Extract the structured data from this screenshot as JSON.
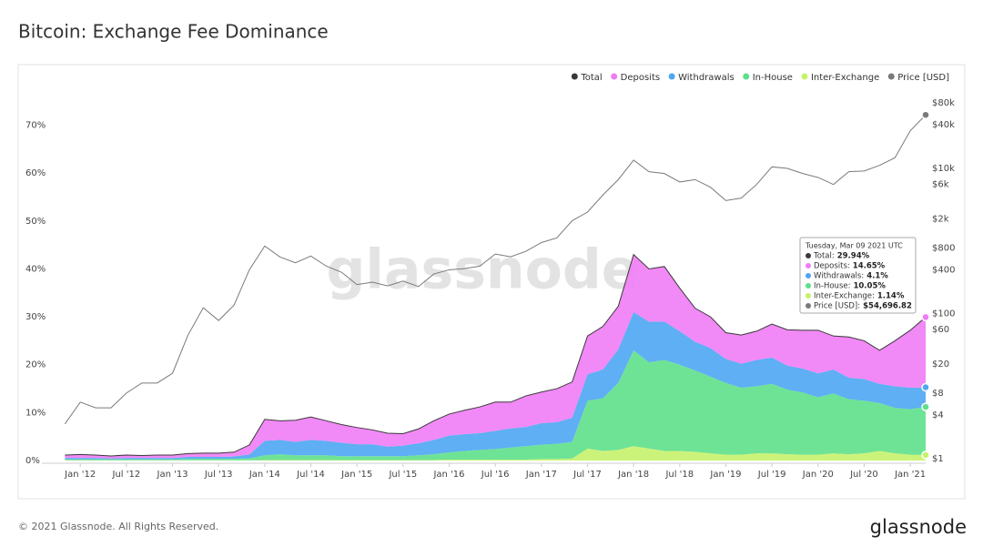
{
  "title": "Bitcoin: Exchange Fee Dominance",
  "footer": "© 2021 Glassnode. All Rights Reserved.",
  "logo": "glassnode",
  "chart_data": {
    "type": "stacked-area",
    "watermark": "glassnode",
    "x": [
      "2011-11",
      "2012-01",
      "2012-03",
      "2012-05",
      "2012-07",
      "2012-09",
      "2012-11",
      "2013-01",
      "2013-03",
      "2013-05",
      "2013-07",
      "2013-09",
      "2013-11",
      "2014-01",
      "2014-03",
      "2014-05",
      "2014-07",
      "2014-09",
      "2014-11",
      "2015-01",
      "2015-03",
      "2015-05",
      "2015-07",
      "2015-09",
      "2015-11",
      "2016-01",
      "2016-03",
      "2016-05",
      "2016-07",
      "2016-09",
      "2016-11",
      "2017-01",
      "2017-03",
      "2017-05",
      "2017-07",
      "2017-09",
      "2017-11",
      "2018-01",
      "2018-03",
      "2018-05",
      "2018-07",
      "2018-09",
      "2018-11",
      "2019-01",
      "2019-03",
      "2019-05",
      "2019-07",
      "2019-09",
      "2019-11",
      "2020-01",
      "2020-03",
      "2020-05",
      "2020-07",
      "2020-09",
      "2020-11",
      "2021-01",
      "2021-03"
    ],
    "xlim": [
      "2011-08",
      "2021-03"
    ],
    "xticks": [
      {
        "value": "2012-01",
        "label": "Jan '12"
      },
      {
        "value": "2012-07",
        "label": "Jul '12"
      },
      {
        "value": "2013-01",
        "label": "Jan '13"
      },
      {
        "value": "2013-07",
        "label": "Jul '13"
      },
      {
        "value": "2014-01",
        "label": "Jan '14"
      },
      {
        "value": "2014-07",
        "label": "Jul '14"
      },
      {
        "value": "2015-01",
        "label": "Jan '15"
      },
      {
        "value": "2015-07",
        "label": "Jul '15"
      },
      {
        "value": "2016-01",
        "label": "Jan '16"
      },
      {
        "value": "2016-07",
        "label": "Jul '16"
      },
      {
        "value": "2017-01",
        "label": "Jan '17"
      },
      {
        "value": "2017-07",
        "label": "Jul '17"
      },
      {
        "value": "2018-01",
        "label": "Jan '18"
      },
      {
        "value": "2018-07",
        "label": "Jul '18"
      },
      {
        "value": "2019-01",
        "label": "Jan '19"
      },
      {
        "value": "2019-07",
        "label": "Jul '19"
      },
      {
        "value": "2020-01",
        "label": "Jan '20"
      },
      {
        "value": "2020-07",
        "label": "Jul '20"
      },
      {
        "value": "2021-01",
        "label": "Jan '21"
      }
    ],
    "ylim": [
      0,
      76
    ],
    "yticks": [
      {
        "value": 0,
        "label": "0%"
      },
      {
        "value": 10,
        "label": "10%"
      },
      {
        "value": 20,
        "label": "20%"
      },
      {
        "value": 30,
        "label": "30%"
      },
      {
        "value": 40,
        "label": "40%"
      },
      {
        "value": 50,
        "label": "50%"
      },
      {
        "value": 60,
        "label": "60%"
      },
      {
        "value": 70,
        "label": "70%"
      }
    ],
    "y2lim": [
      0.94,
      98000
    ],
    "y2log": true,
    "y2ticks": [
      {
        "value": 1,
        "label": "$1"
      },
      {
        "value": 4,
        "label": "$4"
      },
      {
        "value": 8,
        "label": "$8"
      },
      {
        "value": 20,
        "label": "$20"
      },
      {
        "value": 60,
        "label": "$60"
      },
      {
        "value": 100,
        "label": "$100"
      },
      {
        "value": 400,
        "label": "$400"
      },
      {
        "value": 800,
        "label": "$800"
      },
      {
        "value": 2000,
        "label": "$2k"
      },
      {
        "value": 6000,
        "label": "$6k"
      },
      {
        "value": 10000,
        "label": "$10k"
      },
      {
        "value": 40000,
        "label": "$40k"
      },
      {
        "value": 80000,
        "label": "$80k"
      }
    ],
    "grid": false,
    "legend": "top-right",
    "series": [
      {
        "name": "Total",
        "color": "#3a3a3a",
        "values": [
          1.15,
          1.25,
          1.15,
          0.95,
          1.15,
          1.05,
          1.15,
          1.15,
          1.45,
          1.55,
          1.55,
          1.75,
          3.25,
          8.6,
          8.3,
          8.4,
          9.1,
          8.3,
          7.5,
          6.9,
          6.4,
          5.7,
          5.6,
          6.6,
          8.3,
          9.7,
          10.5,
          11.2,
          12.2,
          12.2,
          13.5,
          14.3,
          15,
          16.4,
          26,
          28,
          32.2,
          43,
          40,
          40.5,
          36,
          31.8,
          30,
          26.7,
          26.2,
          27,
          28.5,
          27.3,
          27.2,
          27.2,
          26,
          25.8,
          25,
          23,
          25,
          27.2,
          29.94
        ]
      },
      {
        "name": "Deposits",
        "color": "#f07cf5",
        "stacked": true,
        "values": [
          0.6,
          0.7,
          0.6,
          0.5,
          0.6,
          0.5,
          0.6,
          0.6,
          0.7,
          0.8,
          0.8,
          0.9,
          2.0,
          4.5,
          4.0,
          4.5,
          4.8,
          4.2,
          3.8,
          3.5,
          3.0,
          2.8,
          2.5,
          3.0,
          4.0,
          4.5,
          5.0,
          5.5,
          6.0,
          5.5,
          6.5,
          6.5,
          7.0,
          7.5,
          8.0,
          9.0,
          9.0,
          12.0,
          11.0,
          11.5,
          9.0,
          7.0,
          6.5,
          5.5,
          6.0,
          6.0,
          7.0,
          7.5,
          8.0,
          9.0,
          7.0,
          8.5,
          8.0,
          7.0,
          9.5,
          12.0,
          14.65
        ]
      },
      {
        "name": "Withdrawals",
        "color": "#4da6f2",
        "stacked": true,
        "values": [
          0.3,
          0.3,
          0.3,
          0.2,
          0.3,
          0.3,
          0.3,
          0.3,
          0.4,
          0.4,
          0.4,
          0.5,
          0.8,
          3.0,
          3.0,
          2.8,
          3.2,
          3.0,
          2.8,
          2.5,
          2.5,
          2.0,
          2.2,
          2.5,
          3.0,
          3.5,
          3.5,
          3.5,
          3.8,
          4.0,
          4.0,
          4.5,
          4.5,
          5.0,
          5.5,
          6.0,
          7.0,
          8.0,
          8.5,
          8.0,
          7.0,
          6.0,
          6.0,
          5.0,
          5.0,
          5.5,
          5.5,
          5.0,
          5.0,
          5.0,
          5.0,
          4.5,
          4.5,
          4.0,
          4.5,
          4.5,
          4.1
        ]
      },
      {
        "name": "In-House",
        "color": "#5ee08a",
        "stacked": true,
        "values": [
          0.2,
          0.2,
          0.2,
          0.2,
          0.2,
          0.2,
          0.2,
          0.2,
          0.3,
          0.3,
          0.3,
          0.3,
          0.4,
          1.0,
          1.2,
          1.0,
          1.0,
          1.0,
          0.8,
          0.8,
          0.8,
          0.8,
          0.8,
          1.0,
          1.2,
          1.5,
          1.8,
          2.0,
          2.2,
          2.5,
          2.8,
          3.0,
          3.2,
          3.5,
          10.0,
          11.0,
          14.0,
          20.0,
          18.0,
          19.0,
          18.0,
          17.0,
          16.0,
          15.0,
          14.0,
          14.0,
          14.5,
          13.5,
          13.0,
          12.0,
          12.5,
          11.5,
          11.0,
          10.0,
          9.5,
          9.5,
          10.05
        ]
      },
      {
        "name": "Inter-Exchange",
        "color": "#c6f26a",
        "stacked": true,
        "values": [
          0.05,
          0.05,
          0.05,
          0.05,
          0.05,
          0.05,
          0.05,
          0.05,
          0.05,
          0.05,
          0.05,
          0.05,
          0.05,
          0.1,
          0.1,
          0.1,
          0.1,
          0.1,
          0.1,
          0.1,
          0.1,
          0.1,
          0.1,
          0.1,
          0.1,
          0.2,
          0.2,
          0.2,
          0.2,
          0.2,
          0.2,
          0.3,
          0.3,
          0.4,
          2.5,
          2.0,
          2.2,
          3.0,
          2.5,
          2.0,
          2.0,
          1.8,
          1.5,
          1.2,
          1.2,
          1.5,
          1.5,
          1.3,
          1.2,
          1.2,
          1.5,
          1.3,
          1.5,
          2.0,
          1.5,
          1.2,
          1.14
        ]
      },
      {
        "name": "Price [USD]",
        "color": "#7a7a7a",
        "axis": "y2",
        "values": [
          3,
          6,
          5,
          5,
          8,
          11,
          11,
          15,
          50,
          120,
          80,
          130,
          400,
          850,
          600,
          500,
          620,
          450,
          370,
          250,
          270,
          240,
          280,
          235,
          350,
          400,
          415,
          450,
          660,
          605,
          720,
          950,
          1100,
          1900,
          2500,
          4300,
          7000,
          13000,
          9000,
          8500,
          6500,
          7000,
          5500,
          3600,
          3900,
          6000,
          10500,
          10000,
          8500,
          7500,
          6000,
          9000,
          9200,
          11000,
          14000,
          33000,
          54696.82
        ]
      }
    ],
    "tooltip": {
      "date": "Tuesday, Mar 09 2021 UTC",
      "items": [
        {
          "label": "Total:",
          "value": "29.94%"
        },
        {
          "label": "Deposits:",
          "value": "14.65%"
        },
        {
          "label": "Withdrawals:",
          "value": "4.1%"
        },
        {
          "label": "In-House:",
          "value": "10.05%"
        },
        {
          "label": "Inter-Exchange:",
          "value": "1.14%"
        },
        {
          "label": "Price [USD]:",
          "value": "$54,696.82"
        }
      ]
    }
  }
}
